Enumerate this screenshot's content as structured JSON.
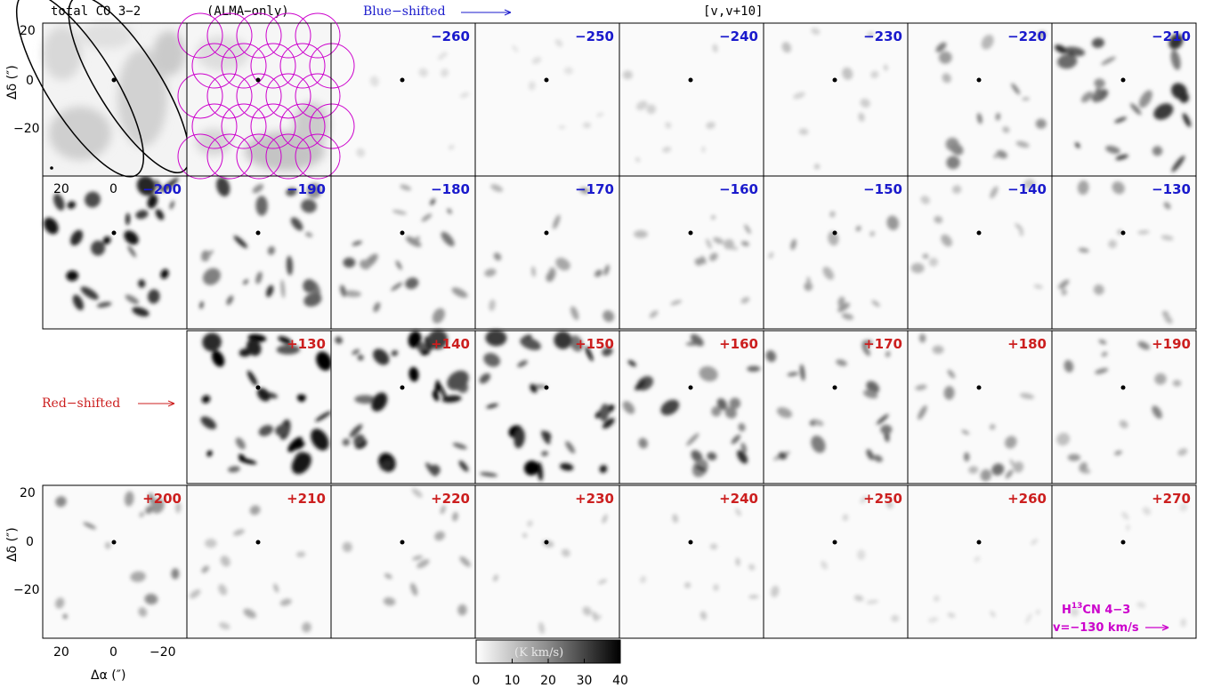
{
  "header": {
    "total_label": "total CO 3−2",
    "alma_label": "(ALMA−only)",
    "blue_label": "Blue−shifted",
    "range_label": "[v,v+10]"
  },
  "red_label": "Red−shifted",
  "axes": {
    "ylabel": "Δδ (″)",
    "xlabel": "Δα (″)",
    "y_ticks": [
      "20",
      "0",
      "−20"
    ],
    "x_ticks": [
      "20",
      "0",
      "−20"
    ]
  },
  "colorbar": {
    "label": "(K km/s)",
    "ticks": [
      "0",
      "10",
      "20",
      "30",
      "40"
    ],
    "vmin": 0,
    "vmax": 40
  },
  "annotation": {
    "line1_prefix": "H",
    "line1_sup": "13",
    "line1_suffix": "CN 4−3",
    "line2": "v=−130 km/s"
  },
  "panels": [
    {
      "row": 0,
      "col": 2,
      "label": "−260",
      "color": "blue",
      "intensity": 0.05
    },
    {
      "row": 0,
      "col": 3,
      "label": "−250",
      "color": "blue",
      "intensity": 0.05
    },
    {
      "row": 0,
      "col": 4,
      "label": "−240",
      "color": "blue",
      "intensity": 0.1
    },
    {
      "row": 0,
      "col": 5,
      "label": "−230",
      "color": "blue",
      "intensity": 0.15
    },
    {
      "row": 0,
      "col": 6,
      "label": "−220",
      "color": "blue",
      "intensity": 0.35
    },
    {
      "row": 0,
      "col": 7,
      "label": "−210",
      "color": "blue",
      "intensity": 0.6
    },
    {
      "row": 1,
      "col": 0,
      "label": "−200",
      "color": "blue",
      "intensity": 0.65
    },
    {
      "row": 1,
      "col": 1,
      "label": "−190",
      "color": "blue",
      "intensity": 0.55
    },
    {
      "row": 1,
      "col": 2,
      "label": "−180",
      "color": "blue",
      "intensity": 0.45
    },
    {
      "row": 1,
      "col": 3,
      "label": "−170",
      "color": "blue",
      "intensity": 0.3
    },
    {
      "row": 1,
      "col": 4,
      "label": "−160",
      "color": "blue",
      "intensity": 0.25
    },
    {
      "row": 1,
      "col": 5,
      "label": "−150",
      "color": "blue",
      "intensity": 0.25
    },
    {
      "row": 1,
      "col": 6,
      "label": "−140",
      "color": "blue",
      "intensity": 0.2
    },
    {
      "row": 1,
      "col": 7,
      "label": "−130",
      "color": "blue",
      "intensity": 0.25
    },
    {
      "row": 2,
      "col": 1,
      "label": "+130",
      "color": "red",
      "intensity": 0.75
    },
    {
      "row": 2,
      "col": 2,
      "label": "+140",
      "color": "red",
      "intensity": 0.75
    },
    {
      "row": 2,
      "col": 3,
      "label": "+150",
      "color": "red",
      "intensity": 0.7
    },
    {
      "row": 2,
      "col": 4,
      "label": "+160",
      "color": "red",
      "intensity": 0.55
    },
    {
      "row": 2,
      "col": 5,
      "label": "+170",
      "color": "red",
      "intensity": 0.45
    },
    {
      "row": 2,
      "col": 6,
      "label": "+180",
      "color": "red",
      "intensity": 0.35
    },
    {
      "row": 2,
      "col": 7,
      "label": "+190",
      "color": "red",
      "intensity": 0.3
    },
    {
      "row": 3,
      "col": 0,
      "label": "+200",
      "color": "red",
      "intensity": 0.3
    },
    {
      "row": 3,
      "col": 1,
      "label": "+210",
      "color": "red",
      "intensity": 0.22
    },
    {
      "row": 3,
      "col": 2,
      "label": "+220",
      "color": "red",
      "intensity": 0.2
    },
    {
      "row": 3,
      "col": 3,
      "label": "+230",
      "color": "red",
      "intensity": 0.15
    },
    {
      "row": 3,
      "col": 4,
      "label": "+240",
      "color": "red",
      "intensity": 0.12
    },
    {
      "row": 3,
      "col": 5,
      "label": "+250",
      "color": "red",
      "intensity": 0.1
    },
    {
      "row": 3,
      "col": 6,
      "label": "+260",
      "color": "red",
      "intensity": 0.07
    },
    {
      "row": 3,
      "col": 7,
      "label": "+270",
      "color": "red",
      "intensity": 0.05
    }
  ]
}
